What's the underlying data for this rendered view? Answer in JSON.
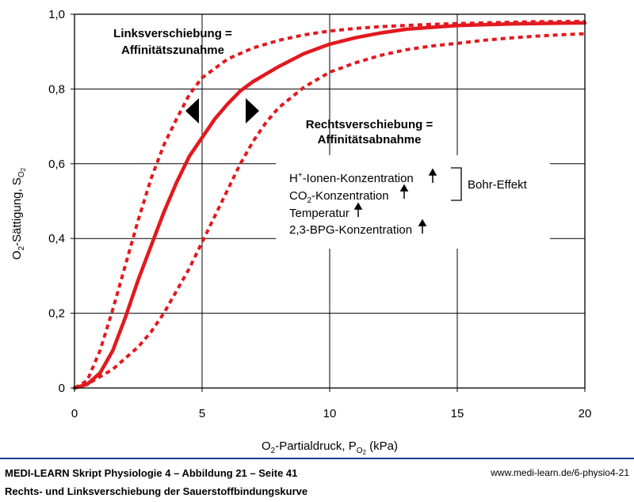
{
  "chart_data": {
    "type": "line",
    "title": "",
    "xlabel": {
      "pre": "O",
      "sub1": "2",
      "mid": "-Partialdruck, P",
      "sub2": "O",
      "subsub": "2",
      "post": " (kPa)"
    },
    "ylabel": {
      "pre": "O",
      "sub1": "2",
      "mid": "-Sättigung, S",
      "sub2": "O",
      "subsub": "2"
    },
    "xlim": [
      0,
      20
    ],
    "ylim": [
      0,
      1.0
    ],
    "x_ticks": [
      0,
      5,
      10,
      15,
      20
    ],
    "x_tick_labels": [
      "0",
      "5",
      "10",
      "15",
      "20"
    ],
    "y_ticks": [
      0,
      0.2,
      0.4,
      0.6,
      0.8,
      1.0
    ],
    "y_tick_labels": [
      "0",
      "0,2",
      "0,4",
      "0,6",
      "0,8",
      "1,0"
    ],
    "grid": true,
    "series": [
      {
        "style": "solid",
        "color": "#e2191f",
        "x": [
          0,
          0.5,
          1,
          1.5,
          2,
          2.5,
          3,
          3.5,
          4,
          4.5,
          5,
          5.5,
          6,
          6.5,
          7,
          8,
          9,
          10,
          11,
          12,
          13,
          14,
          15,
          16,
          17,
          18,
          19,
          20
        ],
        "y": [
          0,
          0.01,
          0.04,
          0.1,
          0.19,
          0.29,
          0.38,
          0.47,
          0.55,
          0.62,
          0.67,
          0.72,
          0.76,
          0.795,
          0.82,
          0.86,
          0.895,
          0.92,
          0.937,
          0.95,
          0.96,
          0.965,
          0.97,
          0.972,
          0.974,
          0.975,
          0.976,
          0.977
        ]
      },
      {
        "style": "dotted",
        "color": "#e2191f",
        "x": [
          0,
          0.5,
          1,
          1.5,
          2,
          2.5,
          3,
          3.5,
          4,
          4.5,
          5,
          6,
          7,
          8,
          9,
          10,
          11,
          12,
          14,
          16,
          18,
          20
        ],
        "y": [
          0,
          0.02,
          0.1,
          0.21,
          0.33,
          0.45,
          0.56,
          0.65,
          0.72,
          0.785,
          0.83,
          0.88,
          0.91,
          0.93,
          0.945,
          0.955,
          0.962,
          0.967,
          0.973,
          0.977,
          0.98,
          0.981
        ]
      },
      {
        "style": "dotted",
        "color": "#e2191f",
        "x": [
          0,
          0.5,
          1,
          1.5,
          2,
          2.5,
          3,
          3.5,
          4,
          4.5,
          5,
          5.5,
          6,
          6.5,
          7,
          7.5,
          8,
          9,
          10,
          11,
          12,
          13,
          14,
          15,
          16,
          17,
          18,
          19,
          20
        ],
        "y": [
          0,
          0.01,
          0.03,
          0.05,
          0.08,
          0.11,
          0.15,
          0.2,
          0.26,
          0.32,
          0.39,
          0.46,
          0.53,
          0.6,
          0.66,
          0.71,
          0.75,
          0.805,
          0.845,
          0.87,
          0.89,
          0.905,
          0.915,
          0.922,
          0.93,
          0.936,
          0.941,
          0.945,
          0.948
        ]
      }
    ],
    "annotations": {
      "left_line1": "Linksverschiebung =",
      "left_line2": "Affinitätszunahme",
      "right_line1": "Rechtsverschiebung =",
      "right_line2": "Affinitätsabnahme",
      "factor1_pre": "H",
      "factor1_sup": "+",
      "factor1_post": "-Ionen-Konzentration",
      "factor2_pre": "CO",
      "factor2_sub": "2",
      "factor2_post": "-Konzentration",
      "factor3": "Temperatur",
      "factor4": "2,3-BPG-Konzentration",
      "bohr": "Bohr-Effekt"
    }
  },
  "footer": {
    "title": "MEDI-LEARN Skript Physiologie 4 – Abbildung 21 – Seite 41",
    "url": "www.medi-learn.de/6-physio4-21",
    "subtitle": "Rechts- und Linksverschiebung der Sauerstoffbindungskurve"
  }
}
